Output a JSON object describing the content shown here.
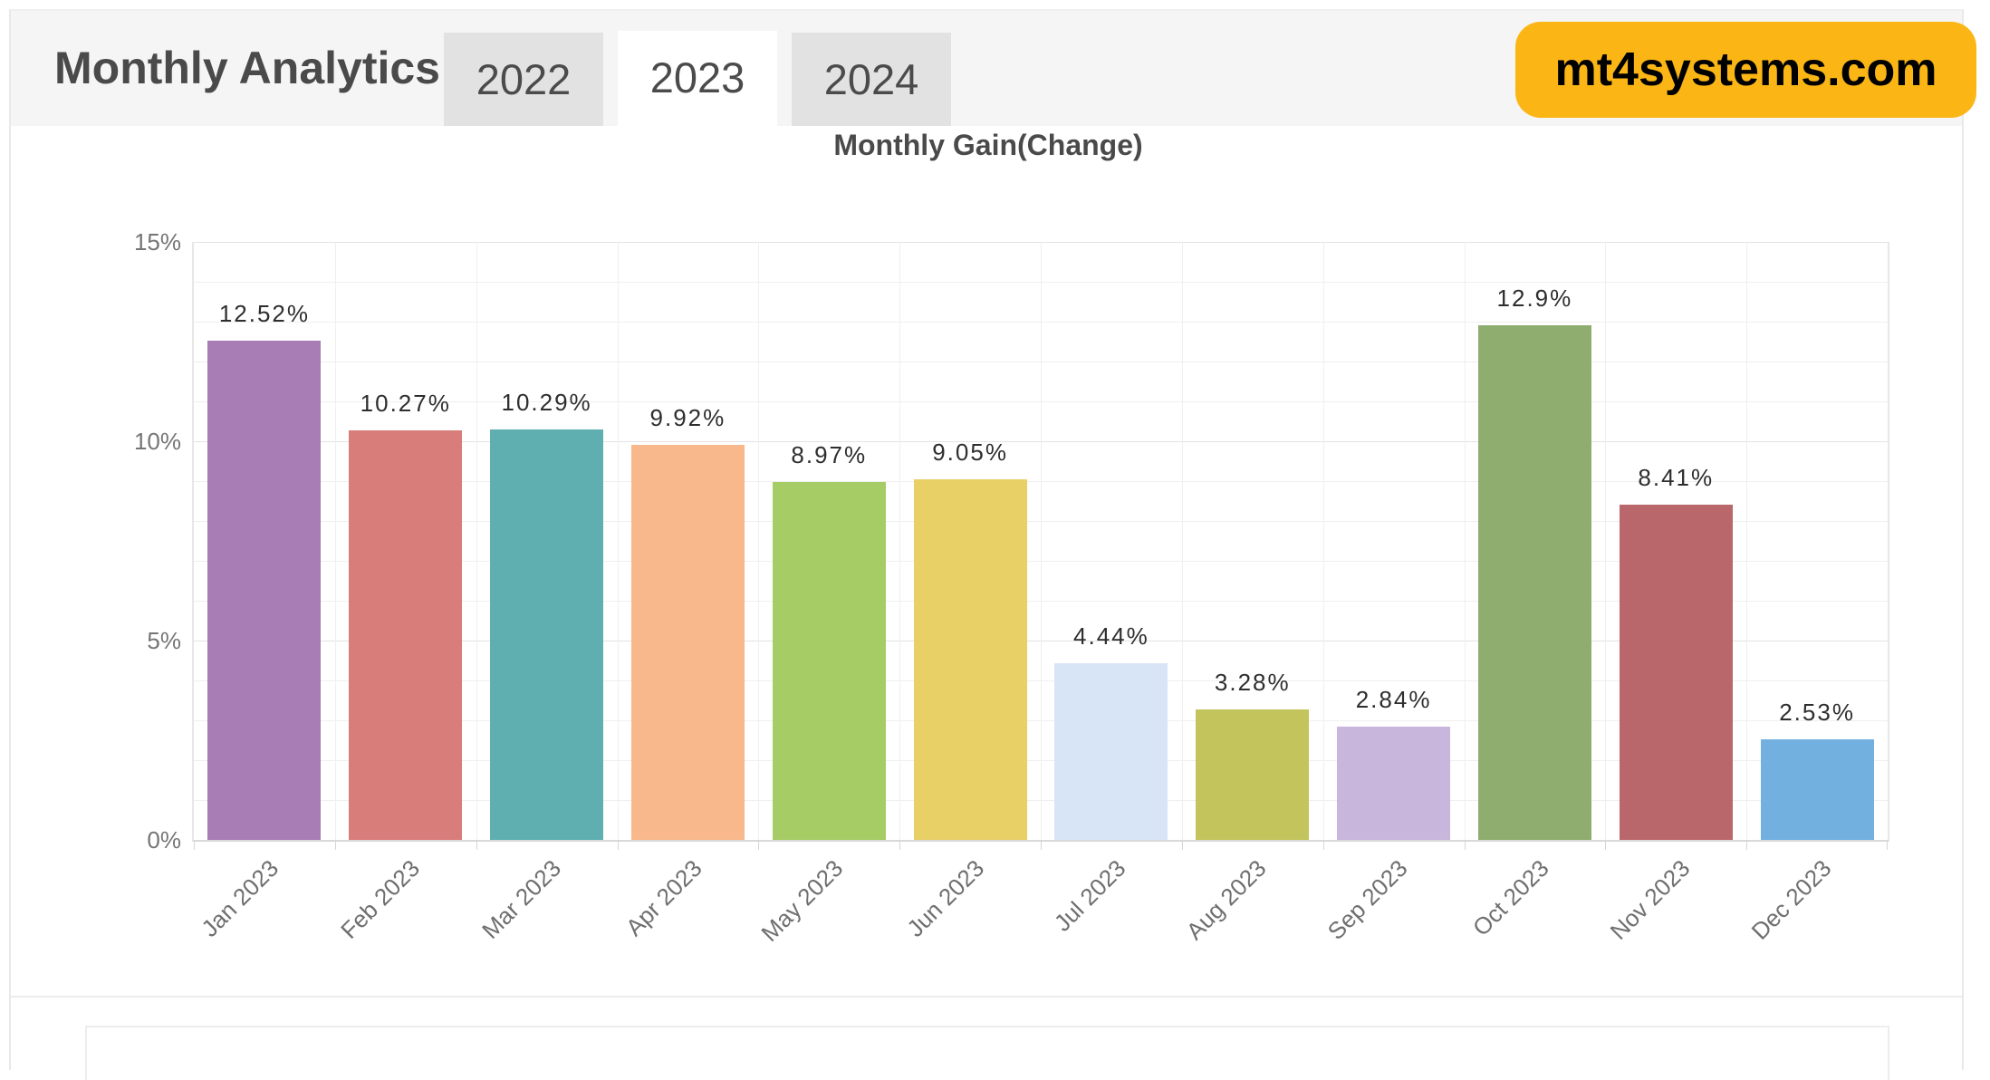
{
  "header": {
    "title": "Monthly Analytics",
    "tabs": [
      {
        "label": "2022",
        "active": false
      },
      {
        "label": "2023",
        "active": true
      },
      {
        "label": "2024",
        "active": false
      }
    ],
    "badge": {
      "text": "mt4systems.com",
      "bg_color": "#fbb615",
      "text_color": "#000000"
    }
  },
  "chart_data": {
    "type": "bar",
    "title": "Monthly Gain(Change)",
    "categories": [
      "Jan 2023",
      "Feb 2023",
      "Mar 2023",
      "Apr 2023",
      "May 2023",
      "Jun 2023",
      "Jul 2023",
      "Aug 2023",
      "Sep 2023",
      "Oct 2023",
      "Nov 2023",
      "Dec 2023"
    ],
    "values": [
      12.52,
      10.27,
      10.29,
      9.92,
      8.97,
      9.05,
      4.44,
      3.28,
      2.84,
      12.9,
      8.41,
      2.53
    ],
    "value_labels": [
      "12.52%",
      "10.27%",
      "10.29%",
      "9.92%",
      "8.97%",
      "9.05%",
      "4.44%",
      "3.28%",
      "2.84%",
      "12.9%",
      "8.41%",
      "2.53%"
    ],
    "bar_colors": [
      "#A87CB5",
      "#D97D7B",
      "#5FAFB1",
      "#F8B88B",
      "#A6CC66",
      "#E8CF66",
      "#D7E5F6",
      "#C3C45C",
      "#C9B6DC",
      "#8FAD6F",
      "#BA676C",
      "#72B0E0"
    ],
    "xlabel": "",
    "ylabel": "",
    "ylim": [
      0,
      15
    ],
    "yticks": [
      {
        "value": 0,
        "label": "0%"
      },
      {
        "value": 5,
        "label": "5%"
      },
      {
        "value": 10,
        "label": "10%"
      },
      {
        "value": 15,
        "label": "15%"
      }
    ],
    "minor_grid_step_pct": 1,
    "grid": true,
    "legend": "none",
    "bar_label_position": "above"
  }
}
